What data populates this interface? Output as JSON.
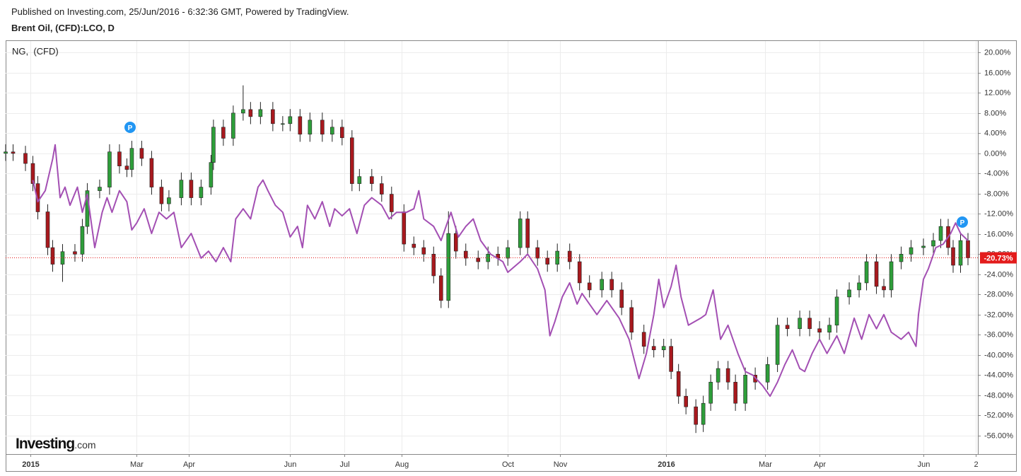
{
  "header": {
    "published": "Published on Investing.com, 25/Jun/2016 - 6:32:36 GMT, Powered by TradingView."
  },
  "logo": {
    "brand": "Investing",
    "suffix": ".com"
  },
  "chart_data": {
    "type": "candlestick",
    "grid": true,
    "xlim": [
      0,
      393
    ],
    "xticks": [
      {
        "value": 10,
        "label": "2015"
      },
      {
        "value": 53,
        "label": "Mar"
      },
      {
        "value": 74,
        "label": "Apr"
      },
      {
        "value": 115,
        "label": "Jun"
      },
      {
        "value": 137,
        "label": "Jul"
      },
      {
        "value": 160,
        "label": "Aug"
      },
      {
        "value": 203,
        "label": "Oct"
      },
      {
        "value": 224,
        "label": "Nov"
      },
      {
        "value": 267,
        "label": "2016"
      },
      {
        "value": 307,
        "label": "Mar"
      },
      {
        "value": 329,
        "label": "Apr"
      },
      {
        "value": 371,
        "label": "Jun"
      },
      {
        "value": 392,
        "label": "2"
      }
    ],
    "ylim": [
      -59.4,
      22.3
    ],
    "yticks": [
      {
        "value": 20,
        "label": "20.00%"
      },
      {
        "value": 16,
        "label": "16.00%"
      },
      {
        "value": 12,
        "label": "12.00%"
      },
      {
        "value": 8,
        "label": "8.00%"
      },
      {
        "value": 4,
        "label": "4.00%"
      },
      {
        "value": 0,
        "label": "0.00%"
      },
      {
        "value": -4,
        "label": "-4.00%"
      },
      {
        "value": -8,
        "label": "-8.00%"
      },
      {
        "value": -12,
        "label": "-12.00%"
      },
      {
        "value": -16,
        "label": "-16.00%"
      },
      {
        "value": -20,
        "label": "-20.00%"
      },
      {
        "value": -24,
        "label": "-24.00%"
      },
      {
        "value": -28,
        "label": "-28.00%"
      },
      {
        "value": -32,
        "label": "-32.00%"
      },
      {
        "value": -36,
        "label": "-36.00%"
      },
      {
        "value": -40,
        "label": "-40.00%"
      },
      {
        "value": -44,
        "label": "-44.00%"
      },
      {
        "value": -48,
        "label": "-48.00%"
      },
      {
        "value": -52,
        "label": "-52.00%"
      },
      {
        "value": -56,
        "label": "-56.00%"
      }
    ],
    "series": [
      {
        "name": "Brent Oil, (CFD):LCO, D",
        "type": "candlestick",
        "up_color": "#2e9e3a",
        "down_color": "#a8191e",
        "last_color": "#e31b1b",
        "last_value_label": "-20.73%",
        "x": [
          0,
          3,
          8,
          11,
          13,
          17,
          19,
          23,
          28,
          31,
          33,
          38,
          42,
          46,
          49,
          51,
          55,
          59,
          63,
          66,
          71,
          75,
          79,
          83,
          84,
          88,
          92,
          96,
          99,
          103,
          108,
          112,
          115,
          119,
          123,
          128,
          132,
          136,
          140,
          143,
          148,
          152,
          156,
          161,
          165,
          169,
          173,
          176,
          179,
          182,
          186,
          191,
          195,
          199,
          203,
          208,
          211,
          215,
          219,
          223,
          228,
          232,
          236,
          241,
          245,
          249,
          253,
          258,
          262,
          266,
          269,
          272,
          275,
          279,
          282,
          285,
          288,
          292,
          295,
          299,
          303,
          308,
          312,
          316,
          321,
          325,
          329,
          333,
          336,
          341,
          345,
          348,
          352,
          355,
          358,
          362,
          366,
          371,
          375,
          378,
          381,
          383,
          386,
          389
        ],
        "open": [
          0,
          0.3,
          0,
          -2,
          -6,
          -11.6,
          -18.7,
          -22,
          -19.5,
          -20,
          -14.5,
          -7.4,
          -6.7,
          0.3,
          -2.5,
          -3.2,
          1,
          -1,
          -6.7,
          -10,
          -8.8,
          -5.3,
          -8.8,
          -6.7,
          -1.8,
          5.2,
          3,
          8,
          8.7,
          7.3,
          8.7,
          5.9,
          5.9,
          7.3,
          3.8,
          6.6,
          3.8,
          5.2,
          3.1,
          -6,
          -4.6,
          -6,
          -8.1,
          -11.6,
          -18,
          -18.7,
          -20,
          -24.3,
          -29.2,
          -15.9,
          -19.4,
          -20.8,
          -21.5,
          -20,
          -20.8,
          -18.7,
          -13,
          -18.7,
          -20.8,
          -22,
          -19.4,
          -21.5,
          -25.7,
          -27.1,
          -25,
          -27.1,
          -30.6,
          -35.5,
          -38.3,
          -39,
          -38.3,
          -43.3,
          -48.2,
          -50.3,
          -53.8,
          -49.6,
          -45.4,
          -42.7,
          -45.4,
          -49.6,
          -44,
          -45.4,
          -41.9,
          -34.1,
          -34.8,
          -32.7,
          -34.8,
          -35.5,
          -34.1,
          -28.5,
          -27.1,
          -25.7,
          -21.5,
          -26.4,
          -27.1,
          -21.5,
          -20,
          -18.7,
          -18.4,
          -17.3,
          -14.5,
          -18.7,
          -22.2,
          -17.3
        ],
        "high": [
          1.8,
          1.8,
          1.5,
          -0.5,
          -4.5,
          -10.1,
          -17.2,
          -18,
          -18,
          -13,
          -5.9,
          -5.2,
          1.8,
          1.8,
          -1,
          2.5,
          2.5,
          0.5,
          -5.2,
          -7.3,
          -3.8,
          -3.8,
          -5.2,
          -0.3,
          6.7,
          6.7,
          9.5,
          13.5,
          10.2,
          10.2,
          10.2,
          7.4,
          8.8,
          8.8,
          8.1,
          8.1,
          6.7,
          6.7,
          4.6,
          -3.1,
          -3.1,
          -4.5,
          -6.6,
          -10.1,
          -16.5,
          -17.2,
          -18.5,
          -22.8,
          -11.5,
          -14.4,
          -17.9,
          -19.3,
          -18.5,
          -18.5,
          -17.2,
          -11.5,
          -11.5,
          -17.2,
          -19.3,
          -17.9,
          -17.9,
          -20,
          -24.2,
          -23.5,
          -23.5,
          -25.6,
          -29.1,
          -34,
          -36.8,
          -36.8,
          -36.8,
          -41.8,
          -46.7,
          -48.8,
          -48.1,
          -43.9,
          -41.2,
          -41.2,
          -43.9,
          -42.5,
          -42.5,
          -40.4,
          -32.6,
          -32.6,
          -31.2,
          -31.2,
          -33.3,
          -32.6,
          -27,
          -25.6,
          -24.2,
          -20,
          -20,
          -24.9,
          -20,
          -18.5,
          -17.2,
          -16.9,
          -15.8,
          -13,
          -13,
          -17.2,
          -15.8,
          -15.8
        ],
        "low": [
          -1.5,
          -1.5,
          -3.5,
          -7.5,
          -13.1,
          -20.2,
          -23.5,
          -25.5,
          -21.5,
          -21.5,
          -16,
          -8.9,
          -8.2,
          -4,
          -4.7,
          -4.7,
          -2.5,
          -8.2,
          -11.5,
          -11.5,
          -10.3,
          -10.3,
          -10.3,
          -8.2,
          -3.3,
          1.5,
          1.5,
          6.5,
          5.8,
          5.8,
          4.4,
          4.4,
          4.4,
          2.3,
          2.3,
          2.3,
          2.3,
          1.6,
          -7.5,
          -7.5,
          -7.5,
          -9.6,
          -13.1,
          -19.5,
          -20.2,
          -21.5,
          -25.8,
          -30.7,
          -30.7,
          -20.9,
          -22.3,
          -23,
          -23,
          -22.3,
          -22.3,
          -20.2,
          -20.2,
          -22.3,
          -23.5,
          -23.5,
          -23,
          -27.2,
          -28.6,
          -28.6,
          -28.6,
          -32.1,
          -37,
          -39.8,
          -40.5,
          -40.5,
          -44.8,
          -49.7,
          -51.8,
          -55.5,
          -55.3,
          -51.1,
          -46.9,
          -46.9,
          -51.1,
          -51.1,
          -46.9,
          -46.9,
          -43.4,
          -36.3,
          -36.3,
          -36.3,
          -37,
          -37,
          -35.6,
          -30,
          -28.6,
          -27.2,
          -27.9,
          -28.6,
          -28.6,
          -23,
          -21.5,
          -20.2,
          -19.9,
          -18.8,
          -20.2,
          -23.7,
          -23.7,
          -22.2
        ],
        "close": [
          0.3,
          0,
          -2,
          -6,
          -11.6,
          -18.7,
          -22,
          -19.5,
          -20,
          -14.5,
          -7.4,
          -6.7,
          0.3,
          -2.5,
          -3.2,
          1,
          -1,
          -6.7,
          -10,
          -8.8,
          -5.3,
          -8.8,
          -6.7,
          -1.8,
          5.2,
          3,
          8,
          8.7,
          7.3,
          8.7,
          5.9,
          5.9,
          7.3,
          3.8,
          6.6,
          3.8,
          5.2,
          3.1,
          -6,
          -4.6,
          -6,
          -8.1,
          -11.6,
          -18,
          -18.7,
          -20,
          -24.3,
          -29.2,
          -15.9,
          -19.4,
          -20.8,
          -21.5,
          -20,
          -20.8,
          -18.7,
          -13,
          -18.7,
          -20.8,
          -22,
          -19.4,
          -21.5,
          -25.7,
          -27.1,
          -25,
          -27.1,
          -30.6,
          -35.5,
          -38.3,
          -39,
          -38.3,
          -43.3,
          -48.2,
          -50.3,
          -53.8,
          -49.6,
          -45.4,
          -42.7,
          -45.4,
          -49.6,
          -44,
          -45.4,
          -41.9,
          -34.1,
          -34.8,
          -32.7,
          -34.8,
          -35.5,
          -34.1,
          -28.5,
          -27.1,
          -25.7,
          -21.5,
          -26.4,
          -27.1,
          -21.5,
          -20,
          -18.7,
          -18.4,
          -17.3,
          -14.5,
          -18.7,
          -22.2,
          -17.3,
          -20.73
        ]
      },
      {
        "name": "NG,  (CFD)",
        "type": "line",
        "color": "#a34fb3",
        "x": [
          11,
          13,
          16,
          19,
          20,
          22,
          24,
          26,
          29,
          31,
          33,
          36,
          39,
          41,
          43,
          46,
          49,
          51,
          53,
          56,
          59,
          62,
          65,
          68,
          71,
          75,
          79,
          82,
          85,
          88,
          91,
          93,
          96,
          99,
          102,
          104,
          106,
          109,
          112,
          115,
          118,
          120,
          122,
          125,
          128,
          131,
          133,
          136,
          139,
          142,
          145,
          148,
          152,
          155,
          158,
          162,
          165,
          167,
          169,
          173,
          176,
          180,
          183,
          186,
          189,
          192,
          196,
          201,
          203,
          208,
          211,
          215,
          218,
          220,
          222,
          225,
          228,
          231,
          233,
          236,
          239,
          243,
          248,
          252,
          256,
          259,
          262,
          264,
          266,
          269,
          271,
          273,
          276,
          281,
          283,
          286,
          289,
          292,
          296,
          299,
          302,
          306,
          309,
          312,
          315,
          318,
          321,
          323,
          326,
          329,
          332,
          336,
          339,
          343,
          346,
          349,
          352,
          355,
          358,
          362,
          365,
          368,
          369,
          371,
          373,
          376,
          379,
          382,
          384,
          386,
          389
        ],
        "values": [
          -5.3,
          -9.6,
          -7.4,
          -1.1,
          1.7,
          -8.8,
          -6.7,
          -10.3,
          -6.7,
          -11.7,
          -8.1,
          -18.7,
          -11.7,
          -8.8,
          -11.7,
          -7.4,
          -9.6,
          -15.2,
          -13.8,
          -11,
          -15.9,
          -11.7,
          -13,
          -11.7,
          -18.7,
          -15.9,
          -20.8,
          -19.4,
          -21.5,
          -18.7,
          -21.5,
          -13,
          -11,
          -13,
          -6.7,
          -5.3,
          -7.4,
          -10.3,
          -11.7,
          -16.6,
          -14.5,
          -18.7,
          -10.3,
          -13,
          -9.6,
          -14.5,
          -11,
          -12.4,
          -11,
          -15.9,
          -10.3,
          -8.8,
          -10.3,
          -13,
          -11.7,
          -11.7,
          -11,
          -7.4,
          -13,
          -14.5,
          -17.3,
          -11.7,
          -16.6,
          -14.5,
          -13,
          -17.3,
          -20,
          -21.5,
          -23.6,
          -21.5,
          -20,
          -22.9,
          -27.1,
          -36.2,
          -33.4,
          -28.5,
          -25.7,
          -29.9,
          -27.8,
          -29.9,
          -32,
          -29.2,
          -32.7,
          -36.9,
          -44.7,
          -39.7,
          -32,
          -25,
          -30.6,
          -26.4,
          -22.2,
          -28.5,
          -34.1,
          -32.7,
          -32,
          -27.1,
          -36.9,
          -34.1,
          -39.7,
          -43.3,
          -44,
          -46.1,
          -48.2,
          -45.4,
          -41.9,
          -39,
          -42.7,
          -43.3,
          -39.7,
          -36.9,
          -39.7,
          -36.2,
          -39.7,
          -32.7,
          -36.9,
          -32,
          -34.8,
          -32,
          -35.5,
          -36.9,
          -35.5,
          -38.3,
          -32,
          -25,
          -22.9,
          -18.7,
          -18,
          -15.9,
          -13.8,
          -15.9,
          -17.3
        ]
      }
    ]
  }
}
